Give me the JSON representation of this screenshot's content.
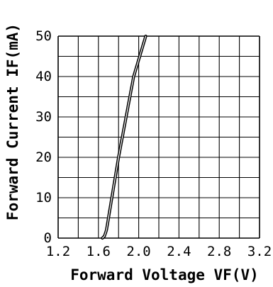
{
  "chart_data": {
    "type": "line",
    "xlabel": "Forward Voltage VF(V)",
    "ylabel": "Forward Current IF(mA)",
    "xlim": [
      1.2,
      3.2
    ],
    "ylim": [
      0,
      50
    ],
    "x_ticks": [
      "1.2",
      "1.6",
      "2.0",
      "2.4",
      "2.8",
      "3.2"
    ],
    "y_ticks": [
      "0",
      "10",
      "20",
      "30",
      "40",
      "50"
    ],
    "grid": true,
    "series": [
      {
        "x": [
          1.64,
          1.66,
          1.68,
          1.8,
          1.95,
          2.07
        ],
        "y": [
          0,
          0.5,
          2,
          20,
          40,
          50
        ]
      }
    ]
  }
}
